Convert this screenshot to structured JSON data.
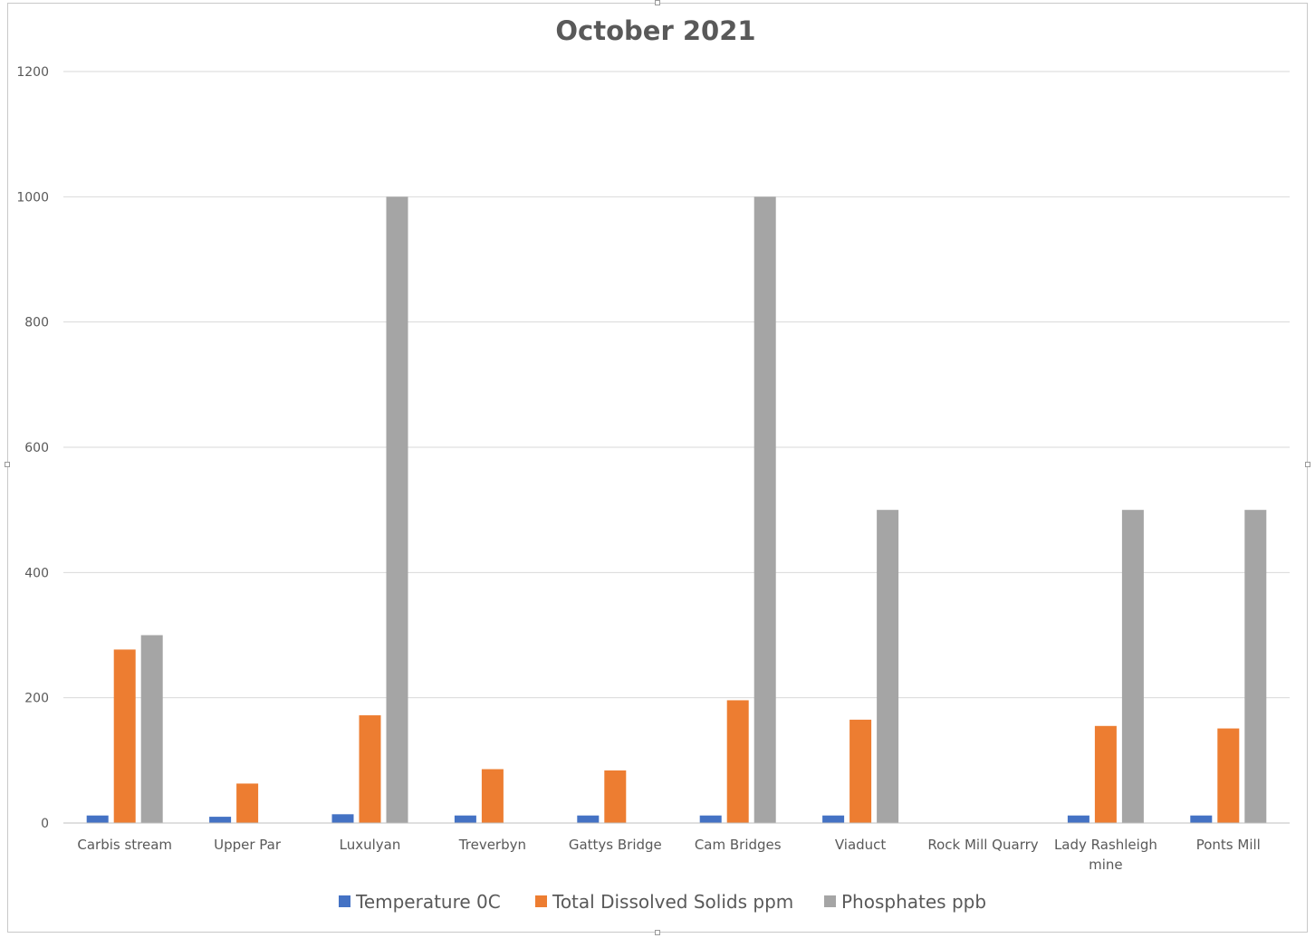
{
  "chart_data": {
    "type": "bar",
    "title": "October 2021",
    "xlabel": "",
    "ylabel": "",
    "ylim": [
      0,
      1200
    ],
    "yticks": [
      0,
      200,
      400,
      600,
      800,
      1000,
      1200
    ],
    "grid": true,
    "legend_position": "bottom",
    "categories": [
      "Carbis stream",
      "Upper Par",
      "Luxulyan",
      "Treverbyn",
      "Gattys Bridge",
      "Cam Bridges",
      "Viaduct",
      "Rock Mill Quarry",
      "Lady Rashleigh mine",
      "Ponts Mill"
    ],
    "series": [
      {
        "name": "Temperature 0C",
        "color": "#4472c4",
        "values": [
          12,
          10,
          14,
          12,
          12,
          12,
          12,
          null,
          12,
          12
        ]
      },
      {
        "name": "Total Dissolved Solids ppm",
        "color": "#ed7d31",
        "values": [
          277,
          63,
          172,
          86,
          84,
          196,
          165,
          null,
          155,
          151
        ]
      },
      {
        "name": "Phosphates ppb",
        "color": "#a5a5a5",
        "values": [
          300,
          null,
          1000,
          null,
          null,
          1000,
          500,
          null,
          500,
          500
        ]
      }
    ]
  }
}
